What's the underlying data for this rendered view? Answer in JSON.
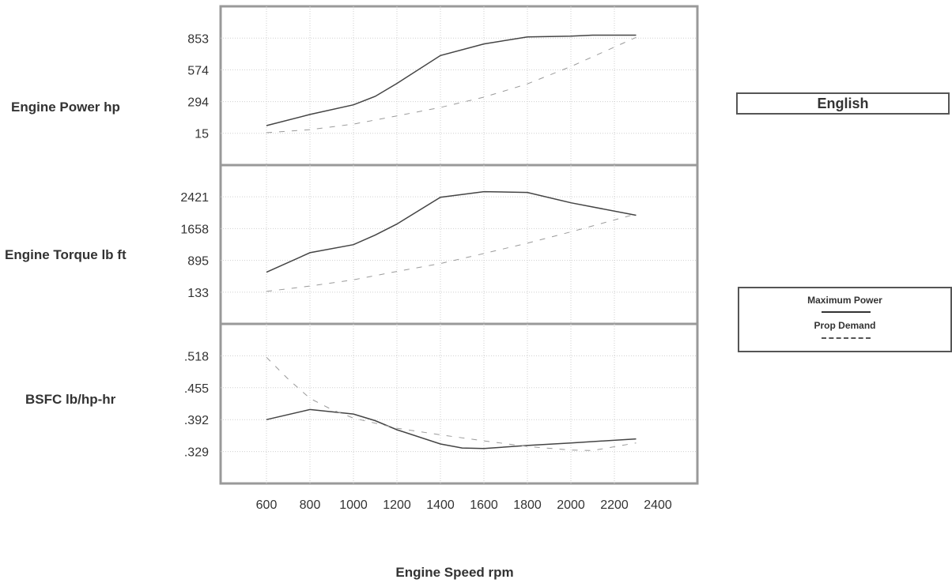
{
  "units_label": "English",
  "legend": [
    {
      "label": "Maximum Power",
      "style": "solid"
    },
    {
      "label": "Prop Demand",
      "style": "dashed"
    }
  ],
  "chart_data": [
    {
      "type": "line",
      "ylabel": "Engine Power hp",
      "xlabel": "Engine Speed rpm",
      "x_ticks": [
        600,
        800,
        1000,
        1200,
        1400,
        1600,
        1800,
        2000,
        2200,
        2400
      ],
      "y_ticks": [
        15,
        294,
        574,
        853
      ],
      "ylim": [
        -265,
        1133
      ],
      "xlim": [
        400,
        2400
      ],
      "grid": true,
      "series": [
        {
          "name": "Maximum Power",
          "style": "solid",
          "x": [
            600,
            800,
            1000,
            1100,
            1200,
            1400,
            1600,
            1800,
            2000,
            2100,
            2300
          ],
          "y": [
            83,
            181,
            266,
            340,
            454,
            700,
            802,
            864,
            871,
            879,
            879
          ]
        },
        {
          "name": "Prop Demand",
          "style": "dashed",
          "x": [
            600,
            800,
            1000,
            1200,
            1400,
            1600,
            1800,
            2000,
            2300
          ],
          "y": [
            20,
            47,
            96,
            168,
            243,
            333,
            450,
            603,
            860
          ]
        }
      ]
    },
    {
      "type": "line",
      "ylabel": "Engine Torque lb ft",
      "xlabel": "Engine Speed rpm",
      "x_ticks": [
        600,
        800,
        1000,
        1200,
        1400,
        1600,
        1800,
        2000,
        2200,
        2400
      ],
      "y_ticks": [
        133,
        895,
        1658,
        2421
      ],
      "ylim": [
        -629,
        3183
      ],
      "xlim": [
        400,
        2400
      ],
      "grid": true,
      "series": [
        {
          "name": "Maximum Power",
          "style": "solid",
          "x": [
            600,
            800,
            1000,
            1100,
            1200,
            1400,
            1600,
            1800,
            2000,
            2300
          ],
          "y": [
            612,
            1080,
            1273,
            1502,
            1769,
            2412,
            2545,
            2526,
            2278,
            1978
          ]
        },
        {
          "name": "Prop Demand",
          "style": "dashed",
          "x": [
            600,
            800,
            1000,
            1200,
            1400,
            1600,
            1800,
            2000,
            2300
          ],
          "y": [
            150,
            280,
            430,
            630,
            820,
            1060,
            1310,
            1580,
            2010
          ]
        }
      ]
    },
    {
      "type": "line",
      "ylabel": "BSFC lb/hp-hr",
      "xlabel": "Engine Speed rpm",
      "x_ticks": [
        600,
        800,
        1000,
        1200,
        1400,
        1600,
        1800,
        2000,
        2200,
        2400
      ],
      "y_ticks": [
        ".329",
        ".392",
        ".455",
        ".518"
      ],
      "ylim": [
        0.266,
        0.581
      ],
      "xlim": [
        400,
        2400
      ],
      "grid": true,
      "series": [
        {
          "name": "Maximum Power",
          "style": "solid",
          "x": [
            600,
            800,
            1000,
            1100,
            1200,
            1400,
            1500,
            1600,
            1800,
            2000,
            2300
          ],
          "y": [
            0.392,
            0.412,
            0.403,
            0.39,
            0.372,
            0.344,
            0.336,
            0.335,
            0.341,
            0.346,
            0.354
          ]
        },
        {
          "name": "Prop Demand",
          "style": "dashed",
          "x": [
            600,
            700,
            800,
            900,
            1000,
            1200,
            1400,
            1600,
            1800,
            2000,
            2100,
            2300
          ],
          "y": [
            0.515,
            0.472,
            0.434,
            0.412,
            0.395,
            0.375,
            0.362,
            0.35,
            0.339,
            0.332,
            0.331,
            0.346
          ]
        }
      ]
    }
  ]
}
